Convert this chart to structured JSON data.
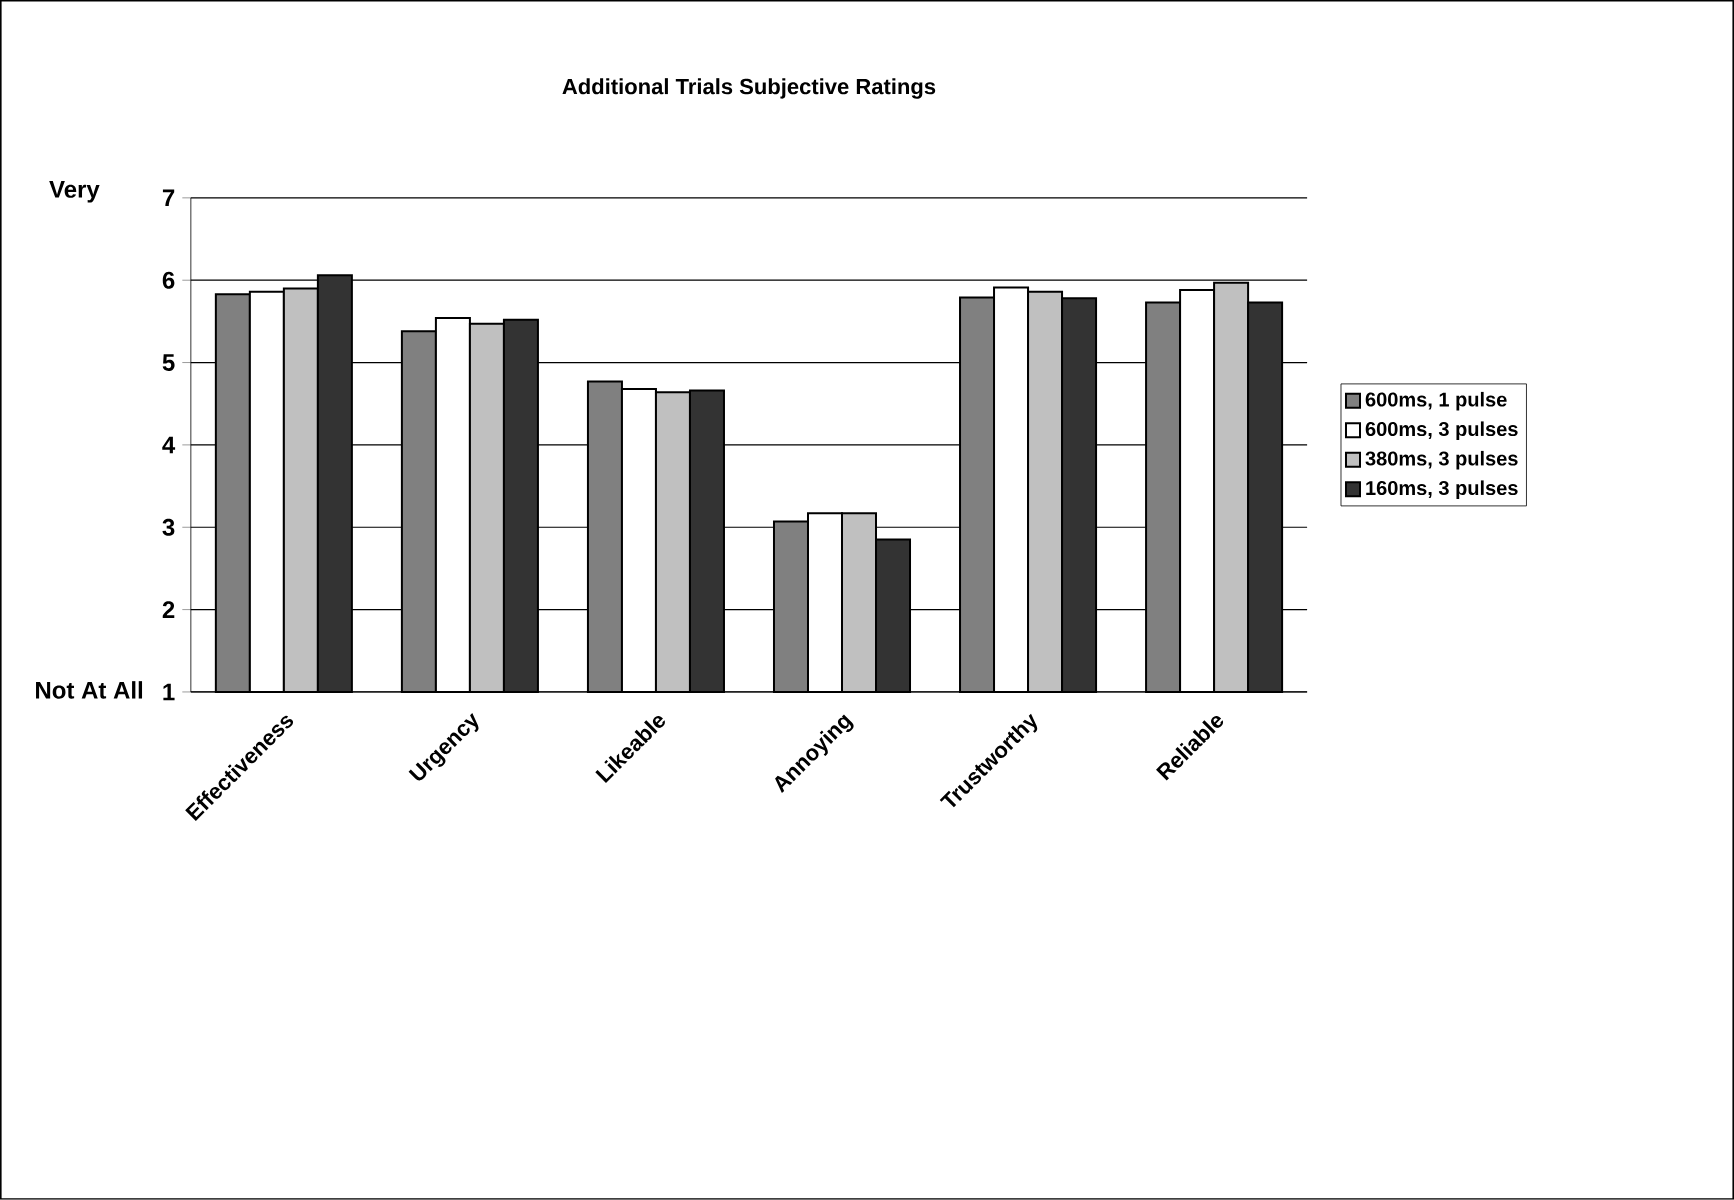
{
  "chart_data": {
    "type": "bar",
    "title": "Additional Trials Subjective Ratings",
    "categories": [
      "Effectiveness",
      "Urgency",
      "Likeable",
      "Annoying",
      "Trustworthy",
      "Reliable"
    ],
    "series": [
      {
        "name": "600ms, 1 pulse",
        "color": "#808080",
        "values": [
          5.83,
          5.38,
          4.77,
          3.07,
          5.79,
          5.73
        ]
      },
      {
        "name": "600ms, 3 pulses",
        "color": "#ffffff",
        "values": [
          5.86,
          5.54,
          4.68,
          3.17,
          5.91,
          5.88
        ]
      },
      {
        "name": "380ms, 3 pulses",
        "color": "#c0c0c0",
        "values": [
          5.9,
          5.47,
          4.64,
          3.17,
          5.86,
          5.97
        ]
      },
      {
        "name": "160ms, 3 pulses",
        "color": "#333333",
        "values": [
          6.06,
          5.52,
          4.66,
          2.85,
          5.78,
          5.73
        ]
      }
    ],
    "ylim": [
      1,
      7
    ],
    "yticks": [
      1,
      2,
      3,
      4,
      5,
      6,
      7
    ],
    "grid": "y",
    "legend": "right",
    "annotations": [
      "Very",
      "Not At All"
    ]
  }
}
